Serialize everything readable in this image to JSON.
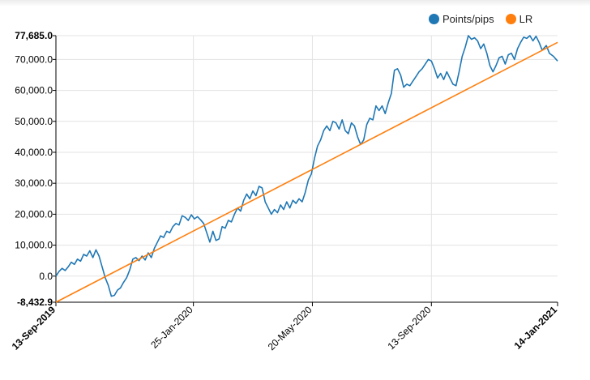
{
  "chart_data": {
    "type": "line",
    "title": "",
    "xlabel": "",
    "ylabel": "",
    "ylim": [
      -8432.9,
      77685.0
    ],
    "y_ticks": [
      {
        "value": 77685.0,
        "label": "77,685.0"
      },
      {
        "value": 70000,
        "label": "70,000.0"
      },
      {
        "value": 60000,
        "label": "60,000.0"
      },
      {
        "value": 50000,
        "label": "50,000.0"
      },
      {
        "value": 40000,
        "label": "40,000.0"
      },
      {
        "value": 30000,
        "label": "30,000.0"
      },
      {
        "value": 20000,
        "label": "20,000.0"
      },
      {
        "value": 10000,
        "label": "10,000.0"
      },
      {
        "value": 0,
        "label": "0.0"
      },
      {
        "value": -8432.9,
        "label": "-8,432.9"
      }
    ],
    "x_ticks": [
      {
        "date": "2019-09-13",
        "label": "13-Sep-2019",
        "bold": true
      },
      {
        "date": "2020-01-25",
        "label": "25-Jan-2020",
        "bold": false
      },
      {
        "date": "2020-05-20",
        "label": "20-May-2020",
        "bold": false
      },
      {
        "date": "2020-09-13",
        "label": "13-Sep-2020",
        "bold": false
      },
      {
        "date": "2021-01-14",
        "label": "14-Jan-2021",
        "bold": true
      }
    ],
    "x_range": [
      "2019-09-13",
      "2021-01-14"
    ],
    "grid": true,
    "legend_position": "top-right",
    "series": [
      {
        "name": "Points/pips",
        "color": "#1f77b4",
        "points": [
          [
            "2019-09-13",
            0
          ],
          [
            "2019-09-16",
            1500
          ],
          [
            "2019-09-19",
            2500
          ],
          [
            "2019-09-22",
            1800
          ],
          [
            "2019-09-25",
            3000
          ],
          [
            "2019-09-28",
            4500
          ],
          [
            "2019-10-01",
            3800
          ],
          [
            "2019-10-04",
            5500
          ],
          [
            "2019-10-07",
            4800
          ],
          [
            "2019-10-10",
            7000
          ],
          [
            "2019-10-13",
            6500
          ],
          [
            "2019-10-16",
            8200
          ],
          [
            "2019-10-19",
            6000
          ],
          [
            "2019-10-22",
            8500
          ],
          [
            "2019-10-25",
            6500
          ],
          [
            "2019-10-28",
            3000
          ],
          [
            "2019-10-31",
            -500
          ],
          [
            "2019-11-03",
            -3000
          ],
          [
            "2019-11-06",
            -6500
          ],
          [
            "2019-11-09",
            -6200
          ],
          [
            "2019-11-12",
            -4500
          ],
          [
            "2019-11-15",
            -3800
          ],
          [
            "2019-11-18",
            -2000
          ],
          [
            "2019-11-21",
            -500
          ],
          [
            "2019-11-24",
            2000
          ],
          [
            "2019-11-27",
            5500
          ],
          [
            "2019-11-30",
            6000
          ],
          [
            "2019-12-03",
            5000
          ],
          [
            "2019-12-06",
            6500
          ],
          [
            "2019-12-09",
            5200
          ],
          [
            "2019-12-12",
            7500
          ],
          [
            "2019-12-15",
            6000
          ],
          [
            "2019-12-18",
            9000
          ],
          [
            "2019-12-21",
            11000
          ],
          [
            "2019-12-24",
            13000
          ],
          [
            "2019-12-27",
            12500
          ],
          [
            "2019-12-30",
            14500
          ],
          [
            "2020-01-02",
            14000
          ],
          [
            "2020-01-05",
            16000
          ],
          [
            "2020-01-08",
            17000
          ],
          [
            "2020-01-11",
            16500
          ],
          [
            "2020-01-14",
            19500
          ],
          [
            "2020-01-17",
            19000
          ],
          [
            "2020-01-20",
            18000
          ],
          [
            "2020-01-23",
            19800
          ],
          [
            "2020-01-26",
            18500
          ],
          [
            "2020-01-29",
            19200
          ],
          [
            "2020-02-01",
            18200
          ],
          [
            "2020-02-04",
            17000
          ],
          [
            "2020-02-07",
            14000
          ],
          [
            "2020-02-10",
            11000
          ],
          [
            "2020-02-13",
            14500
          ],
          [
            "2020-02-16",
            11500
          ],
          [
            "2020-02-19",
            12000
          ],
          [
            "2020-02-22",
            16000
          ],
          [
            "2020-02-25",
            15500
          ],
          [
            "2020-02-28",
            18000
          ],
          [
            "2020-03-02",
            17500
          ],
          [
            "2020-03-05",
            20000
          ],
          [
            "2020-03-08",
            22000
          ],
          [
            "2020-03-11",
            21000
          ],
          [
            "2020-03-14",
            24500
          ],
          [
            "2020-03-17",
            26500
          ],
          [
            "2020-03-20",
            25000
          ],
          [
            "2020-03-23",
            27500
          ],
          [
            "2020-03-26",
            26000
          ],
          [
            "2020-03-29",
            29000
          ],
          [
            "2020-04-01",
            28500
          ],
          [
            "2020-04-04",
            24000
          ],
          [
            "2020-04-07",
            22000
          ],
          [
            "2020-04-10",
            20000
          ],
          [
            "2020-04-13",
            21500
          ],
          [
            "2020-04-16",
            20500
          ],
          [
            "2020-04-19",
            23000
          ],
          [
            "2020-04-22",
            21500
          ],
          [
            "2020-04-25",
            24000
          ],
          [
            "2020-04-28",
            22000
          ],
          [
            "2020-05-01",
            24500
          ],
          [
            "2020-05-04",
            23500
          ],
          [
            "2020-05-07",
            25000
          ],
          [
            "2020-05-10",
            24000
          ],
          [
            "2020-05-13",
            27000
          ],
          [
            "2020-05-16",
            31000
          ],
          [
            "2020-05-19",
            33000
          ],
          [
            "2020-05-22",
            38000
          ],
          [
            "2020-05-25",
            42000
          ],
          [
            "2020-05-28",
            44000
          ],
          [
            "2020-05-31",
            47000
          ],
          [
            "2020-06-03",
            48500
          ],
          [
            "2020-06-06",
            47000
          ],
          [
            "2020-06-09",
            50000
          ],
          [
            "2020-06-12",
            49500
          ],
          [
            "2020-06-15",
            47500
          ],
          [
            "2020-06-18",
            50500
          ],
          [
            "2020-06-21",
            47000
          ],
          [
            "2020-06-24",
            46000
          ],
          [
            "2020-06-27",
            49500
          ],
          [
            "2020-06-30",
            48500
          ],
          [
            "2020-07-03",
            45000
          ],
          [
            "2020-07-06",
            42500
          ],
          [
            "2020-07-09",
            44000
          ],
          [
            "2020-07-12",
            49000
          ],
          [
            "2020-07-15",
            51000
          ],
          [
            "2020-07-18",
            50500
          ],
          [
            "2020-07-21",
            55000
          ],
          [
            "2020-07-24",
            53500
          ],
          [
            "2020-07-27",
            55000
          ],
          [
            "2020-07-30",
            52500
          ],
          [
            "2020-08-02",
            56000
          ],
          [
            "2020-08-05",
            59000
          ],
          [
            "2020-08-08",
            66500
          ],
          [
            "2020-08-11",
            67000
          ],
          [
            "2020-08-14",
            65000
          ],
          [
            "2020-08-17",
            61000
          ],
          [
            "2020-08-20",
            62000
          ],
          [
            "2020-08-23",
            61500
          ],
          [
            "2020-08-26",
            63000
          ],
          [
            "2020-08-29",
            64500
          ],
          [
            "2020-09-01",
            66000
          ],
          [
            "2020-09-04",
            67000
          ],
          [
            "2020-09-07",
            68500
          ],
          [
            "2020-09-10",
            70000
          ],
          [
            "2020-09-13",
            69500
          ],
          [
            "2020-09-16",
            67000
          ],
          [
            "2020-09-19",
            64000
          ],
          [
            "2020-09-22",
            65500
          ],
          [
            "2020-09-25",
            63500
          ],
          [
            "2020-09-28",
            66000
          ],
          [
            "2020-10-01",
            64000
          ],
          [
            "2020-10-04",
            62000
          ],
          [
            "2020-10-07",
            61500
          ],
          [
            "2020-10-10",
            66000
          ],
          [
            "2020-10-13",
            71000
          ],
          [
            "2020-10-16",
            74000
          ],
          [
            "2020-10-19",
            77685
          ],
          [
            "2020-10-22",
            76500
          ],
          [
            "2020-10-25",
            77000
          ],
          [
            "2020-10-28",
            76000
          ],
          [
            "2020-10-31",
            73500
          ],
          [
            "2020-11-03",
            75000
          ],
          [
            "2020-11-06",
            72000
          ],
          [
            "2020-11-09",
            68000
          ],
          [
            "2020-11-12",
            66000
          ],
          [
            "2020-11-15",
            68000
          ],
          [
            "2020-11-18",
            70500
          ],
          [
            "2020-11-21",
            71000
          ],
          [
            "2020-11-24",
            68500
          ],
          [
            "2020-11-27",
            71500
          ],
          [
            "2020-11-30",
            72000
          ],
          [
            "2020-12-03",
            70000
          ],
          [
            "2020-12-06",
            73500
          ],
          [
            "2020-12-09",
            75500
          ],
          [
            "2020-12-12",
            77200
          ],
          [
            "2020-12-15",
            76800
          ],
          [
            "2020-12-18",
            77685
          ],
          [
            "2020-12-21",
            76000
          ],
          [
            "2020-12-24",
            77500
          ],
          [
            "2020-12-27",
            75500
          ],
          [
            "2020-12-30",
            73000
          ],
          [
            "2021-01-03",
            74500
          ],
          [
            "2021-01-06",
            72000
          ],
          [
            "2021-01-10",
            71000
          ],
          [
            "2021-01-14",
            69500
          ]
        ]
      },
      {
        "name": "LR",
        "color": "#ff7f0e",
        "points": [
          [
            "2019-09-13",
            -8432.9
          ],
          [
            "2021-01-14",
            75500
          ]
        ]
      }
    ]
  }
}
